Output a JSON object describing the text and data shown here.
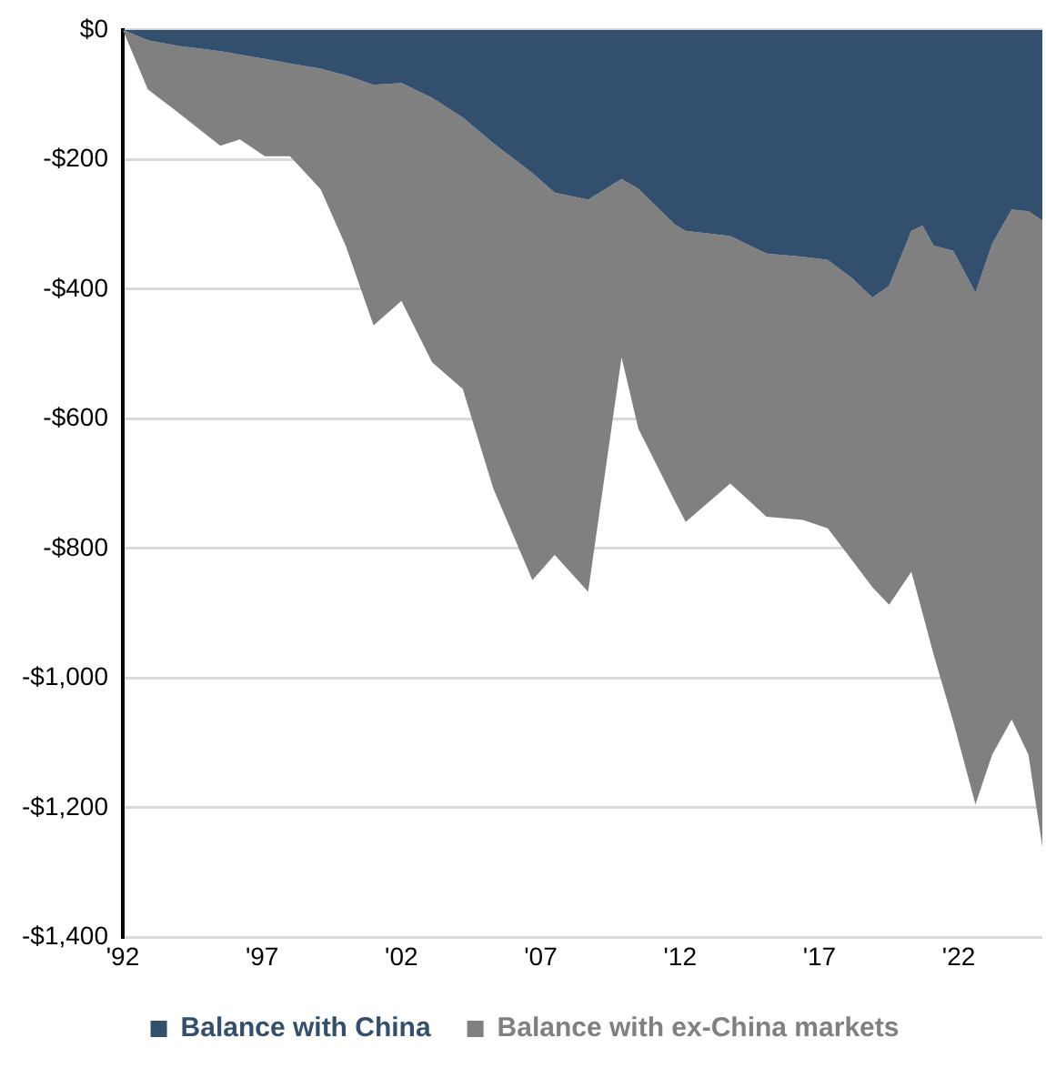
{
  "chart_data": {
    "type": "area",
    "stacked": true,
    "x": [
      1992.0,
      1992.9,
      1994.0,
      1995.5,
      1996.2,
      1997.1,
      1998.0,
      1999.1,
      2000.0,
      2001.0,
      2002.0,
      2003.1,
      2004.2,
      2005.3,
      2006.7,
      2007.5,
      2008.7,
      2009.9,
      2010.5,
      2011.8,
      2012.2,
      2013.8,
      2015.1,
      2016.4,
      2017.3,
      2018.2,
      2018.9,
      2019.5,
      2020.3,
      2020.7,
      2021.1,
      2021.8,
      2022.6,
      2023.2,
      2023.9,
      2024.5,
      2025.0
    ],
    "series": [
      {
        "name": "Balance with China",
        "color": "#334f6e",
        "values": [
          0,
          -16,
          -25,
          -33,
          -38,
          -45,
          -52,
          -60,
          -70,
          -85,
          -82,
          -105,
          -135,
          -175,
          -221,
          -251,
          -262,
          -230,
          -245,
          -300,
          -310,
          -318,
          -345,
          -350,
          -355,
          -384,
          -413,
          -395,
          -310,
          -302,
          -333,
          -341,
          -405,
          -330,
          -277,
          -280,
          -294
        ]
      },
      {
        "name": "Balance with ex-China markets",
        "color": "#808080",
        "values": [
          0,
          -76,
          -103,
          -146,
          -131,
          -150,
          -143,
          -186,
          -263,
          -371,
          -336,
          -408,
          -419,
          -533,
          -628,
          -559,
          -605,
          -275,
          -370,
          -426,
          -449,
          -382,
          -406,
          -406,
          -414,
          -436,
          -447,
          -492,
          -526,
          -598,
          -631,
          -726,
          -790,
          -788,
          -787,
          -838,
          -966
        ]
      }
    ],
    "xlim": [
      1992,
      2025
    ],
    "xticks": [
      {
        "value": 1992,
        "label": "'92"
      },
      {
        "value": 1997,
        "label": "'97"
      },
      {
        "value": 2002,
        "label": "'02"
      },
      {
        "value": 2007,
        "label": "'07"
      },
      {
        "value": 2012,
        "label": "'12"
      },
      {
        "value": 2017,
        "label": "'17"
      },
      {
        "value": 2022,
        "label": "'22"
      }
    ],
    "ylim": [
      -1400,
      0
    ],
    "yticks": [
      {
        "value": 0,
        "label": "$0"
      },
      {
        "value": -200,
        "label": "-$200"
      },
      {
        "value": -400,
        "label": "-$400"
      },
      {
        "value": -600,
        "label": "-$600"
      },
      {
        "value": -800,
        "label": "-$800"
      },
      {
        "value": -1000,
        "label": "-$1,000"
      },
      {
        "value": -1200,
        "label": "-$1,200"
      },
      {
        "value": -1400,
        "label": "-$1,400"
      }
    ],
    "grid": "y",
    "legend": "bottom",
    "marker": "none"
  }
}
